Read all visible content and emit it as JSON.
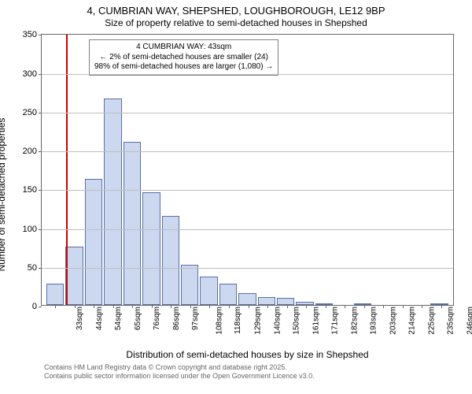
{
  "title": {
    "main": "4, CUMBRIAN WAY, SHEPSHED, LOUGHBOROUGH, LE12 9BP",
    "sub": "Size of property relative to semi-detached houses in Shepshed"
  },
  "axes": {
    "y_label": "Number of semi-detached properties",
    "x_label": "Distribution of semi-detached houses by size in Shepshed",
    "y_max": 350,
    "y_ticks": [
      0,
      50,
      100,
      150,
      200,
      250,
      300,
      350
    ]
  },
  "colors": {
    "bar_fill": "#ccd8ef",
    "bar_border": "#5a6fa8",
    "grid": "#bfbfbf",
    "marker": "#cc0000",
    "axis": "#666666",
    "text": "#000000",
    "annotation_border": "#808080",
    "attribution_text": "#666666",
    "background": "#ffffff"
  },
  "annotation": {
    "line1": "4 CUMBRIAN WAY: 43sqm",
    "line2": "← 2% of semi-detached houses are smaller (24)",
    "line3": "98% of semi-detached houses are larger (1,080) →"
  },
  "marker_category_index": 1,
  "bars": [
    {
      "label": "33sqm",
      "value": 28
    },
    {
      "label": "44sqm",
      "value": 75
    },
    {
      "label": "54sqm",
      "value": 163
    },
    {
      "label": "65sqm",
      "value": 266
    },
    {
      "label": "76sqm",
      "value": 210
    },
    {
      "label": "86sqm",
      "value": 145
    },
    {
      "label": "97sqm",
      "value": 115
    },
    {
      "label": "108sqm",
      "value": 52
    },
    {
      "label": "118sqm",
      "value": 37
    },
    {
      "label": "129sqm",
      "value": 28
    },
    {
      "label": "140sqm",
      "value": 15
    },
    {
      "label": "150sqm",
      "value": 10
    },
    {
      "label": "161sqm",
      "value": 9
    },
    {
      "label": "171sqm",
      "value": 4
    },
    {
      "label": "182sqm",
      "value": 2
    },
    {
      "label": "193sqm",
      "value": 0
    },
    {
      "label": "203sqm",
      "value": 1
    },
    {
      "label": "214sqm",
      "value": 0
    },
    {
      "label": "225sqm",
      "value": 0
    },
    {
      "label": "235sqm",
      "value": 0
    },
    {
      "label": "246sqm",
      "value": 1
    }
  ],
  "attribution": {
    "line1": "Contains HM Land Registry data © Crown copyright and database right 2025.",
    "line2": "Contains public sector information licensed under the Open Government Licence v3.0."
  }
}
